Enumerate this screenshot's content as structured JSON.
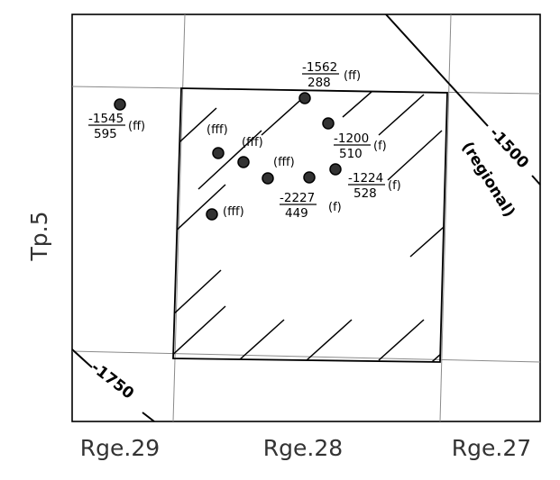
{
  "axes": {
    "range_labels": [
      "Rge.29",
      "Rge.28",
      "Rge.27"
    ],
    "township_label": "Tp.5"
  },
  "contours": [
    {
      "id": "c1500",
      "value": "-1500",
      "qualifier": "(regional)"
    },
    {
      "id": "c1750",
      "value": "-1750"
    }
  ],
  "wells": [
    {
      "id": "w1",
      "numerator": "-1545",
      "denominator": "595",
      "tag": "(ff)"
    },
    {
      "id": "w2",
      "numerator": "-1562",
      "denominator": "288",
      "tag": "(ff)"
    },
    {
      "id": "w3",
      "numerator": "-1200",
      "denominator": "510",
      "tag": "(f)"
    },
    {
      "id": "w4",
      "numerator": "-1224",
      "denominator": "528",
      "tag": "(f)"
    },
    {
      "id": "w5",
      "numerator": "-2227",
      "denominator": "449",
      "tag": "(f)"
    },
    {
      "id": "w6",
      "tag": "(fff)"
    },
    {
      "id": "w7",
      "tag": "(fff)"
    },
    {
      "id": "w8",
      "tag": "(fff)"
    },
    {
      "id": "w9",
      "tag": "(fff)"
    }
  ]
}
